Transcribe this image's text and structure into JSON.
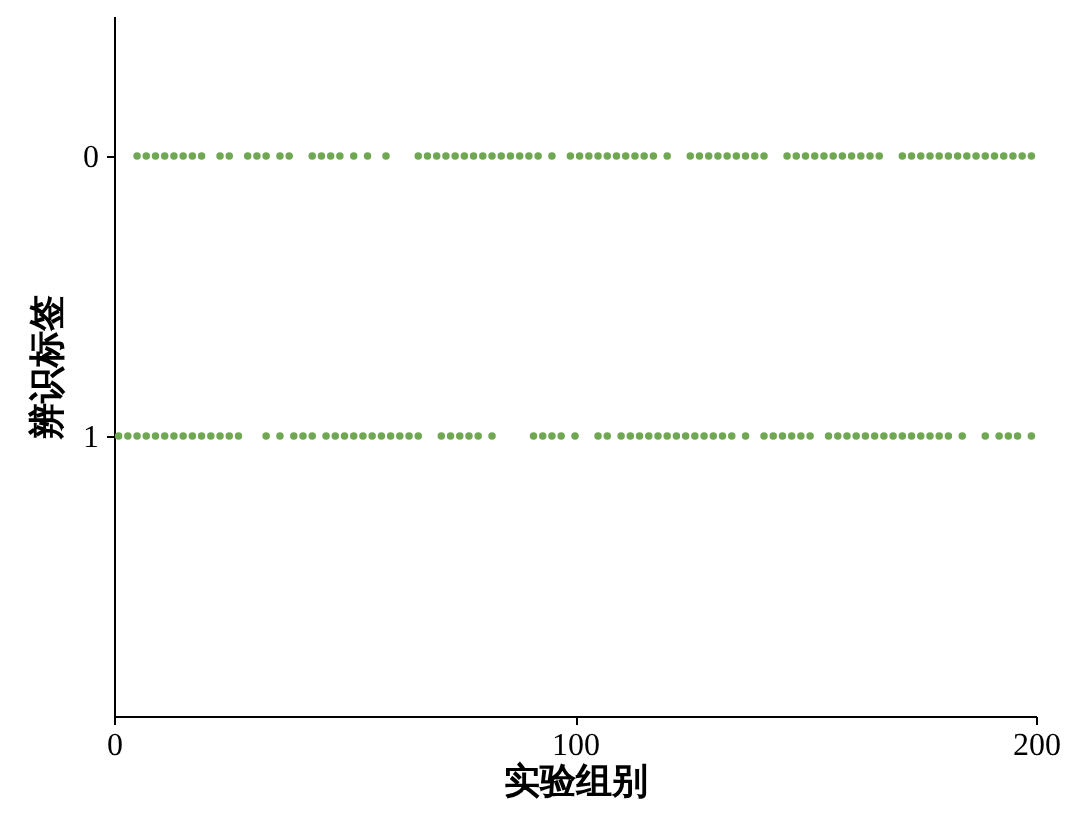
{
  "chart_data": {
    "type": "scatter",
    "xlabel": "实验组别",
    "ylabel": "辨识标签",
    "xlim": [
      0,
      200
    ],
    "xticks": [
      0,
      100,
      200
    ],
    "ylim": [
      2,
      -0.5
    ],
    "yticks": [
      0,
      1
    ],
    "grid": false,
    "marker": "circle",
    "series": [
      {
        "color": "#6fa753",
        "x": [
          5,
          7,
          9,
          11,
          13,
          15,
          17,
          19,
          23,
          25,
          29,
          31,
          33,
          36,
          38,
          43,
          45,
          47,
          49,
          52,
          55,
          59,
          66,
          68,
          70,
          72,
          74,
          76,
          78,
          80,
          82,
          84,
          86,
          88,
          90,
          92,
          95,
          99,
          101,
          103,
          105,
          107,
          109,
          111,
          113,
          115,
          117,
          120,
          125,
          127,
          129,
          131,
          133,
          135,
          137,
          139,
          141,
          146,
          148,
          150,
          152,
          154,
          156,
          158,
          160,
          162,
          164,
          166,
          171,
          173,
          175,
          177,
          179,
          181,
          183,
          185,
          187,
          189,
          191,
          193,
          195,
          197,
          199,
          1,
          3,
          5,
          7,
          9,
          11,
          13,
          15,
          17,
          19,
          21,
          23,
          25,
          27,
          33,
          36,
          39,
          41,
          43,
          46,
          48,
          50,
          52,
          54,
          56,
          58,
          60,
          62,
          64,
          66,
          71,
          73,
          75,
          77,
          79,
          82,
          91,
          93,
          95,
          97,
          100,
          105,
          107,
          110,
          112,
          114,
          116,
          118,
          120,
          122,
          124,
          126,
          128,
          130,
          132,
          134,
          137,
          141,
          143,
          145,
          147,
          149,
          151,
          155,
          157,
          159,
          161,
          163,
          165,
          167,
          169,
          171,
          173,
          175,
          177,
          179,
          181,
          184,
          189,
          192,
          194,
          196,
          199
        ],
        "values": [
          0,
          0,
          0,
          0,
          0,
          0,
          0,
          0,
          0,
          0,
          0,
          0,
          0,
          0,
          0,
          0,
          0,
          0,
          0,
          0,
          0,
          0,
          0,
          0,
          0,
          0,
          0,
          0,
          0,
          0,
          0,
          0,
          0,
          0,
          0,
          0,
          0,
          0,
          0,
          0,
          0,
          0,
          0,
          0,
          0,
          0,
          0,
          0,
          0,
          0,
          0,
          0,
          0,
          0,
          0,
          0,
          0,
          0,
          0,
          0,
          0,
          0,
          0,
          0,
          0,
          0,
          0,
          0,
          0,
          0,
          0,
          0,
          0,
          0,
          0,
          0,
          0,
          0,
          0,
          0,
          0,
          0,
          0,
          1,
          1,
          1,
          1,
          1,
          1,
          1,
          1,
          1,
          1,
          1,
          1,
          1,
          1,
          1,
          1,
          1,
          1,
          1,
          1,
          1,
          1,
          1,
          1,
          1,
          1,
          1,
          1,
          1,
          1,
          1,
          1,
          1,
          1,
          1,
          1,
          1,
          1,
          1,
          1,
          1,
          1,
          1,
          1,
          1,
          1,
          1,
          1,
          1,
          1,
          1,
          1,
          1,
          1,
          1,
          1,
          1,
          1,
          1,
          1,
          1,
          1,
          1,
          1,
          1,
          1,
          1,
          1,
          1,
          1,
          1,
          1,
          1,
          1,
          1,
          1,
          1,
          1,
          1,
          1,
          1,
          1,
          1
        ]
      }
    ]
  }
}
